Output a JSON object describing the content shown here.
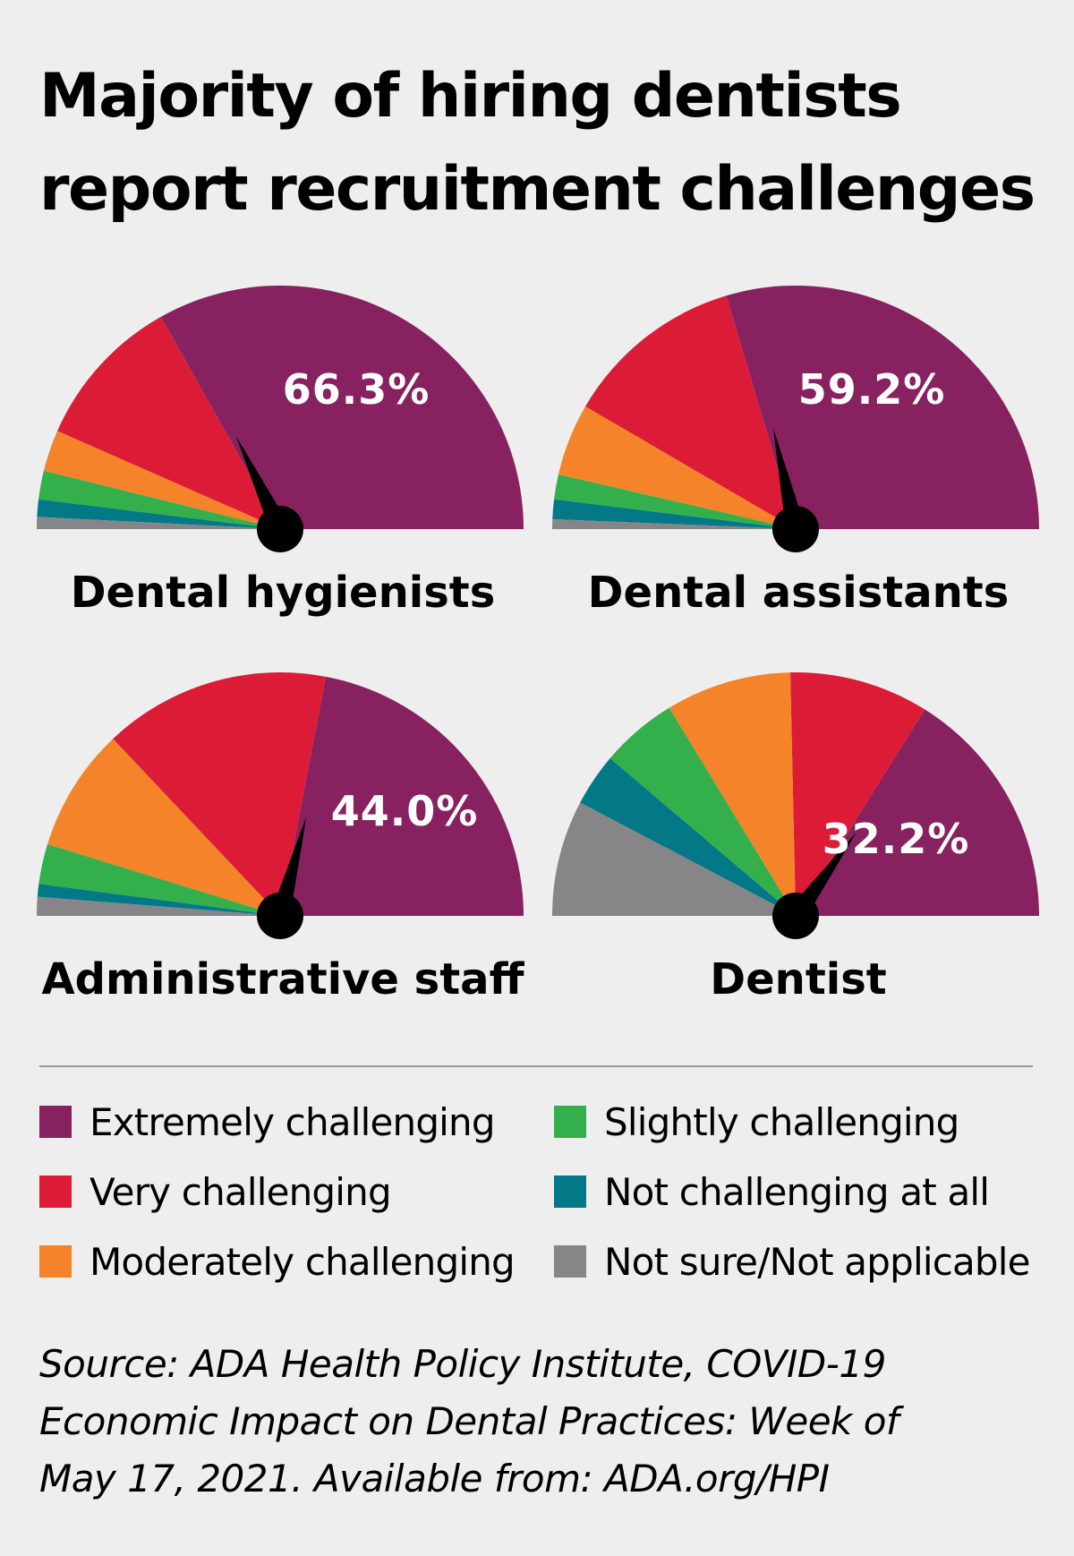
{
  "title": "Majority of hiring dentists report recruitment challenges",
  "colors": {
    "extremely": "#87215f",
    "very": "#dc1c36",
    "moderately": "#f4832a",
    "slightly": "#33b04c",
    "not_at_all": "#037887",
    "not_sure": "#868688"
  },
  "chart_data": [
    {
      "type": "pie",
      "variant": "half-donut-gauge",
      "title": "Dental hygienists",
      "categories": [
        "Extremely challenging",
        "Very challenging",
        "Moderately challenging",
        "Slightly challenging",
        "Not challenging at all",
        "Not sure/Not applicable"
      ],
      "values": [
        66.3,
        20.5,
        5.5,
        3.8,
        2.3,
        1.6
      ],
      "gauge_label": "66.3%",
      "needle_value": 66.3
    },
    {
      "type": "pie",
      "variant": "half-donut-gauge",
      "title": "Dental assistants",
      "categories": [
        "Extremely challenging",
        "Very challenging",
        "Moderately challenging",
        "Slightly challenging",
        "Not challenging at all",
        "Not sure/Not applicable"
      ],
      "values": [
        59.2,
        24.0,
        9.6,
        3.3,
        2.6,
        1.3
      ],
      "gauge_label": "59.2%",
      "needle_value": 59.2
    },
    {
      "type": "pie",
      "variant": "half-donut-gauge",
      "title": "Administrative staff",
      "categories": [
        "Extremely challenging",
        "Very challenging",
        "Moderately challenging",
        "Slightly challenging",
        "Not challenging at all",
        "Not sure/Not applicable"
      ],
      "values": [
        44.0,
        30.1,
        16.4,
        5.3,
        1.7,
        2.5
      ],
      "gauge_label": "44.0%",
      "needle_value": 44.0
    },
    {
      "type": "pie",
      "variant": "half-donut-gauge",
      "title": "Dentist",
      "categories": [
        "Extremely challenging",
        "Very challenging",
        "Moderately challenging",
        "Slightly challenging",
        "Not challenging at all",
        "Not sure/Not applicable"
      ],
      "values": [
        32.2,
        18.5,
        16.7,
        10.2,
        7.0,
        15.4
      ],
      "gauge_label": "32.2%",
      "needle_value": 32.2
    }
  ],
  "legend": [
    {
      "label": "Extremely challenging",
      "color": "#87215f"
    },
    {
      "label": "Slightly challenging",
      "color": "#33b04c"
    },
    {
      "label": "Very challenging",
      "color": "#dc1c36"
    },
    {
      "label": "Not challenging at all",
      "color": "#037887"
    },
    {
      "label": "Moderately challenging",
      "color": "#f4832a"
    },
    {
      "label": "Not sure/Not applicable",
      "color": "#868688"
    }
  ],
  "source": {
    "line1": "Source: ADA Health Policy Institute, COVID-19",
    "line2": "Economic Impact on Dental Practices: Week of",
    "line3": "May 17, 2021. Available from: ADA.org/HPI"
  }
}
